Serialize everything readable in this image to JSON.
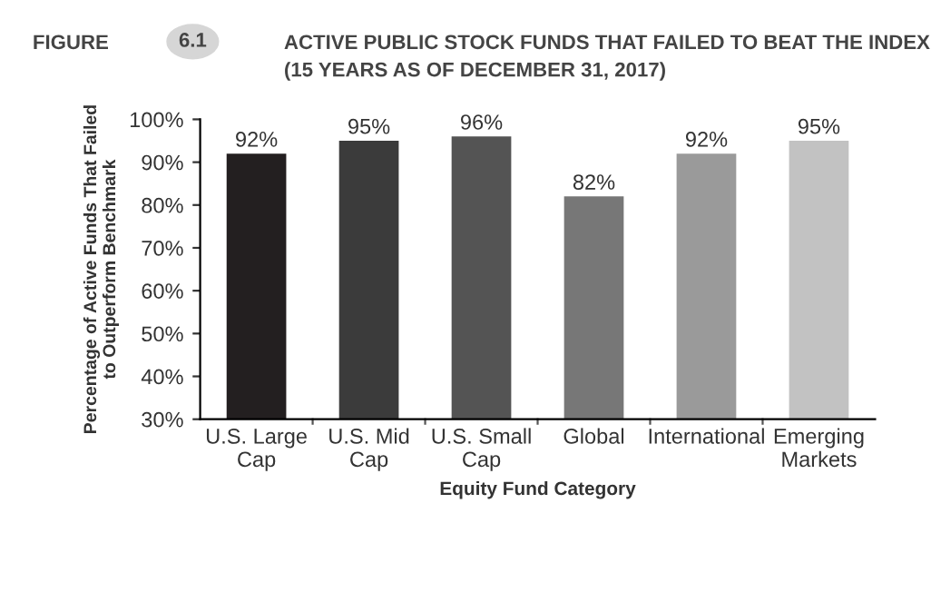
{
  "chart_data": {
    "type": "bar",
    "title": "ACTIVE PUBLIC STOCK FUNDS THAT FAILED TO BEAT THE INDEX",
    "subtitle": "(15 YEARS AS OF DECEMBER 31, 2017)",
    "annotations": [
      "FIGURE",
      "6.1"
    ],
    "xlabel": "Equity Fund Category",
    "ylabel": "Percentage of Active Funds That Failed\nto Outperform Benchmark",
    "categories": [
      "U.S. Large\nCap",
      "U.S. Mid\nCap",
      "U.S. Small\nCap",
      "Global",
      "International",
      "Emerging\nMarkets"
    ],
    "values": [
      92,
      95,
      96,
      82,
      92,
      95
    ],
    "colors": [
      "#231f20",
      "#3b3b3b",
      "#545454",
      "#777777",
      "#9a9a9a",
      "#c2c2c2"
    ],
    "value_labels": [
      "92%",
      "95%",
      "96%",
      "82%",
      "92%",
      "95%"
    ],
    "ylim": [
      30,
      100
    ],
    "yticks": [
      {
        "value": 30,
        "label": "30%"
      },
      {
        "value": 40,
        "label": "40%"
      },
      {
        "value": 50,
        "label": "50%"
      },
      {
        "value": 60,
        "label": "60%"
      },
      {
        "value": 70,
        "label": "70%"
      },
      {
        "value": 80,
        "label": "80%"
      },
      {
        "value": 90,
        "label": "90%"
      },
      {
        "value": 100,
        "label": "100%"
      }
    ],
    "grid": false,
    "legend": false
  }
}
